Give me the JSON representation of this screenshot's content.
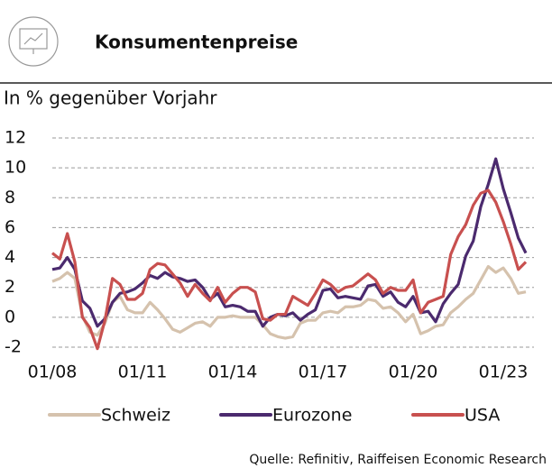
{
  "chart_data": {
    "type": "line",
    "title": "Konsumentenpreise",
    "subtitle": "In % gegenüber Vorjahr",
    "source": "Quelle: Refinitiv, Raiffeisen Economic Research",
    "x": [
      "01/08",
      "04/08",
      "07/08",
      "10/08",
      "01/09",
      "04/09",
      "07/09",
      "10/09",
      "01/10",
      "04/10",
      "07/10",
      "10/10",
      "01/11",
      "04/11",
      "07/11",
      "10/11",
      "01/12",
      "04/12",
      "07/12",
      "10/12",
      "01/13",
      "04/13",
      "07/13",
      "10/13",
      "01/14",
      "04/14",
      "07/14",
      "10/14",
      "01/15",
      "04/15",
      "07/15",
      "10/15",
      "01/16",
      "04/16",
      "07/16",
      "10/16",
      "01/17",
      "04/17",
      "07/17",
      "10/17",
      "01/18",
      "04/18",
      "07/18",
      "10/18",
      "01/19",
      "04/19",
      "07/19",
      "10/19",
      "01/20",
      "04/20",
      "07/20",
      "10/20",
      "01/21",
      "04/21",
      "07/21",
      "10/21",
      "01/22",
      "04/22",
      "07/22",
      "10/22",
      "01/23",
      "04/23",
      "07/23",
      "10/23"
    ],
    "xticks": [
      "01/08",
      "01/11",
      "01/14",
      "01/17",
      "01/20",
      "01/23"
    ],
    "ylim": [
      -2,
      12
    ],
    "yticks": [
      -2,
      0,
      2,
      4,
      6,
      8,
      10,
      12
    ],
    "grid": true,
    "legend": "bottom",
    "series": [
      {
        "name": "Schweiz",
        "color": "#d5c2ad",
        "values": [
          2.4,
          2.6,
          3.0,
          2.6,
          0.1,
          -1.0,
          -1.2,
          -0.4,
          1.0,
          1.4,
          0.5,
          0.3,
          0.3,
          1.0,
          0.5,
          -0.1,
          -0.8,
          -1.0,
          -0.7,
          -0.4,
          -0.3,
          -0.6,
          0.0,
          0.0,
          0.1,
          0.0,
          0.0,
          0.0,
          -0.5,
          -1.1,
          -1.3,
          -1.4,
          -1.3,
          -0.4,
          -0.2,
          -0.2,
          0.3,
          0.4,
          0.3,
          0.7,
          0.7,
          0.8,
          1.2,
          1.1,
          0.6,
          0.7,
          0.3,
          -0.3,
          0.2,
          -1.1,
          -0.9,
          -0.6,
          -0.5,
          0.3,
          0.7,
          1.2,
          1.6,
          2.5,
          3.4,
          3.0,
          3.3,
          2.6,
          1.6,
          1.7
        ]
      },
      {
        "name": "Eurozone",
        "color": "#4b2a6e",
        "values": [
          3.2,
          3.3,
          4.0,
          3.2,
          1.1,
          0.6,
          -0.6,
          -0.1,
          1.0,
          1.6,
          1.7,
          1.9,
          2.3,
          2.8,
          2.6,
          3.0,
          2.7,
          2.6,
          2.4,
          2.5,
          2.0,
          1.2,
          1.6,
          0.7,
          0.8,
          0.7,
          0.4,
          0.4,
          -0.6,
          0.0,
          0.2,
          0.1,
          0.3,
          -0.2,
          0.2,
          0.5,
          1.8,
          1.9,
          1.3,
          1.4,
          1.3,
          1.2,
          2.1,
          2.2,
          1.4,
          1.7,
          1.0,
          0.7,
          1.4,
          0.3,
          0.4,
          -0.3,
          0.9,
          1.6,
          2.2,
          4.1,
          5.1,
          7.4,
          8.9,
          10.6,
          8.6,
          7.0,
          5.3,
          4.3
        ]
      },
      {
        "name": "USA",
        "color": "#c8504f",
        "values": [
          4.3,
          3.9,
          5.6,
          3.7,
          0.0,
          -0.7,
          -2.1,
          -0.2,
          2.6,
          2.2,
          1.2,
          1.2,
          1.6,
          3.2,
          3.6,
          3.5,
          2.9,
          2.3,
          1.4,
          2.2,
          1.6,
          1.1,
          2.0,
          1.0,
          1.6,
          2.0,
          2.0,
          1.7,
          -0.1,
          -0.2,
          0.2,
          0.2,
          1.4,
          1.1,
          0.8,
          1.6,
          2.5,
          2.2,
          1.7,
          2.0,
          2.1,
          2.5,
          2.9,
          2.5,
          1.6,
          2.0,
          1.8,
          1.8,
          2.5,
          0.3,
          1.0,
          1.2,
          1.4,
          4.2,
          5.4,
          6.2,
          7.5,
          8.3,
          8.5,
          7.7,
          6.4,
          4.9,
          3.2,
          3.7
        ]
      }
    ]
  }
}
